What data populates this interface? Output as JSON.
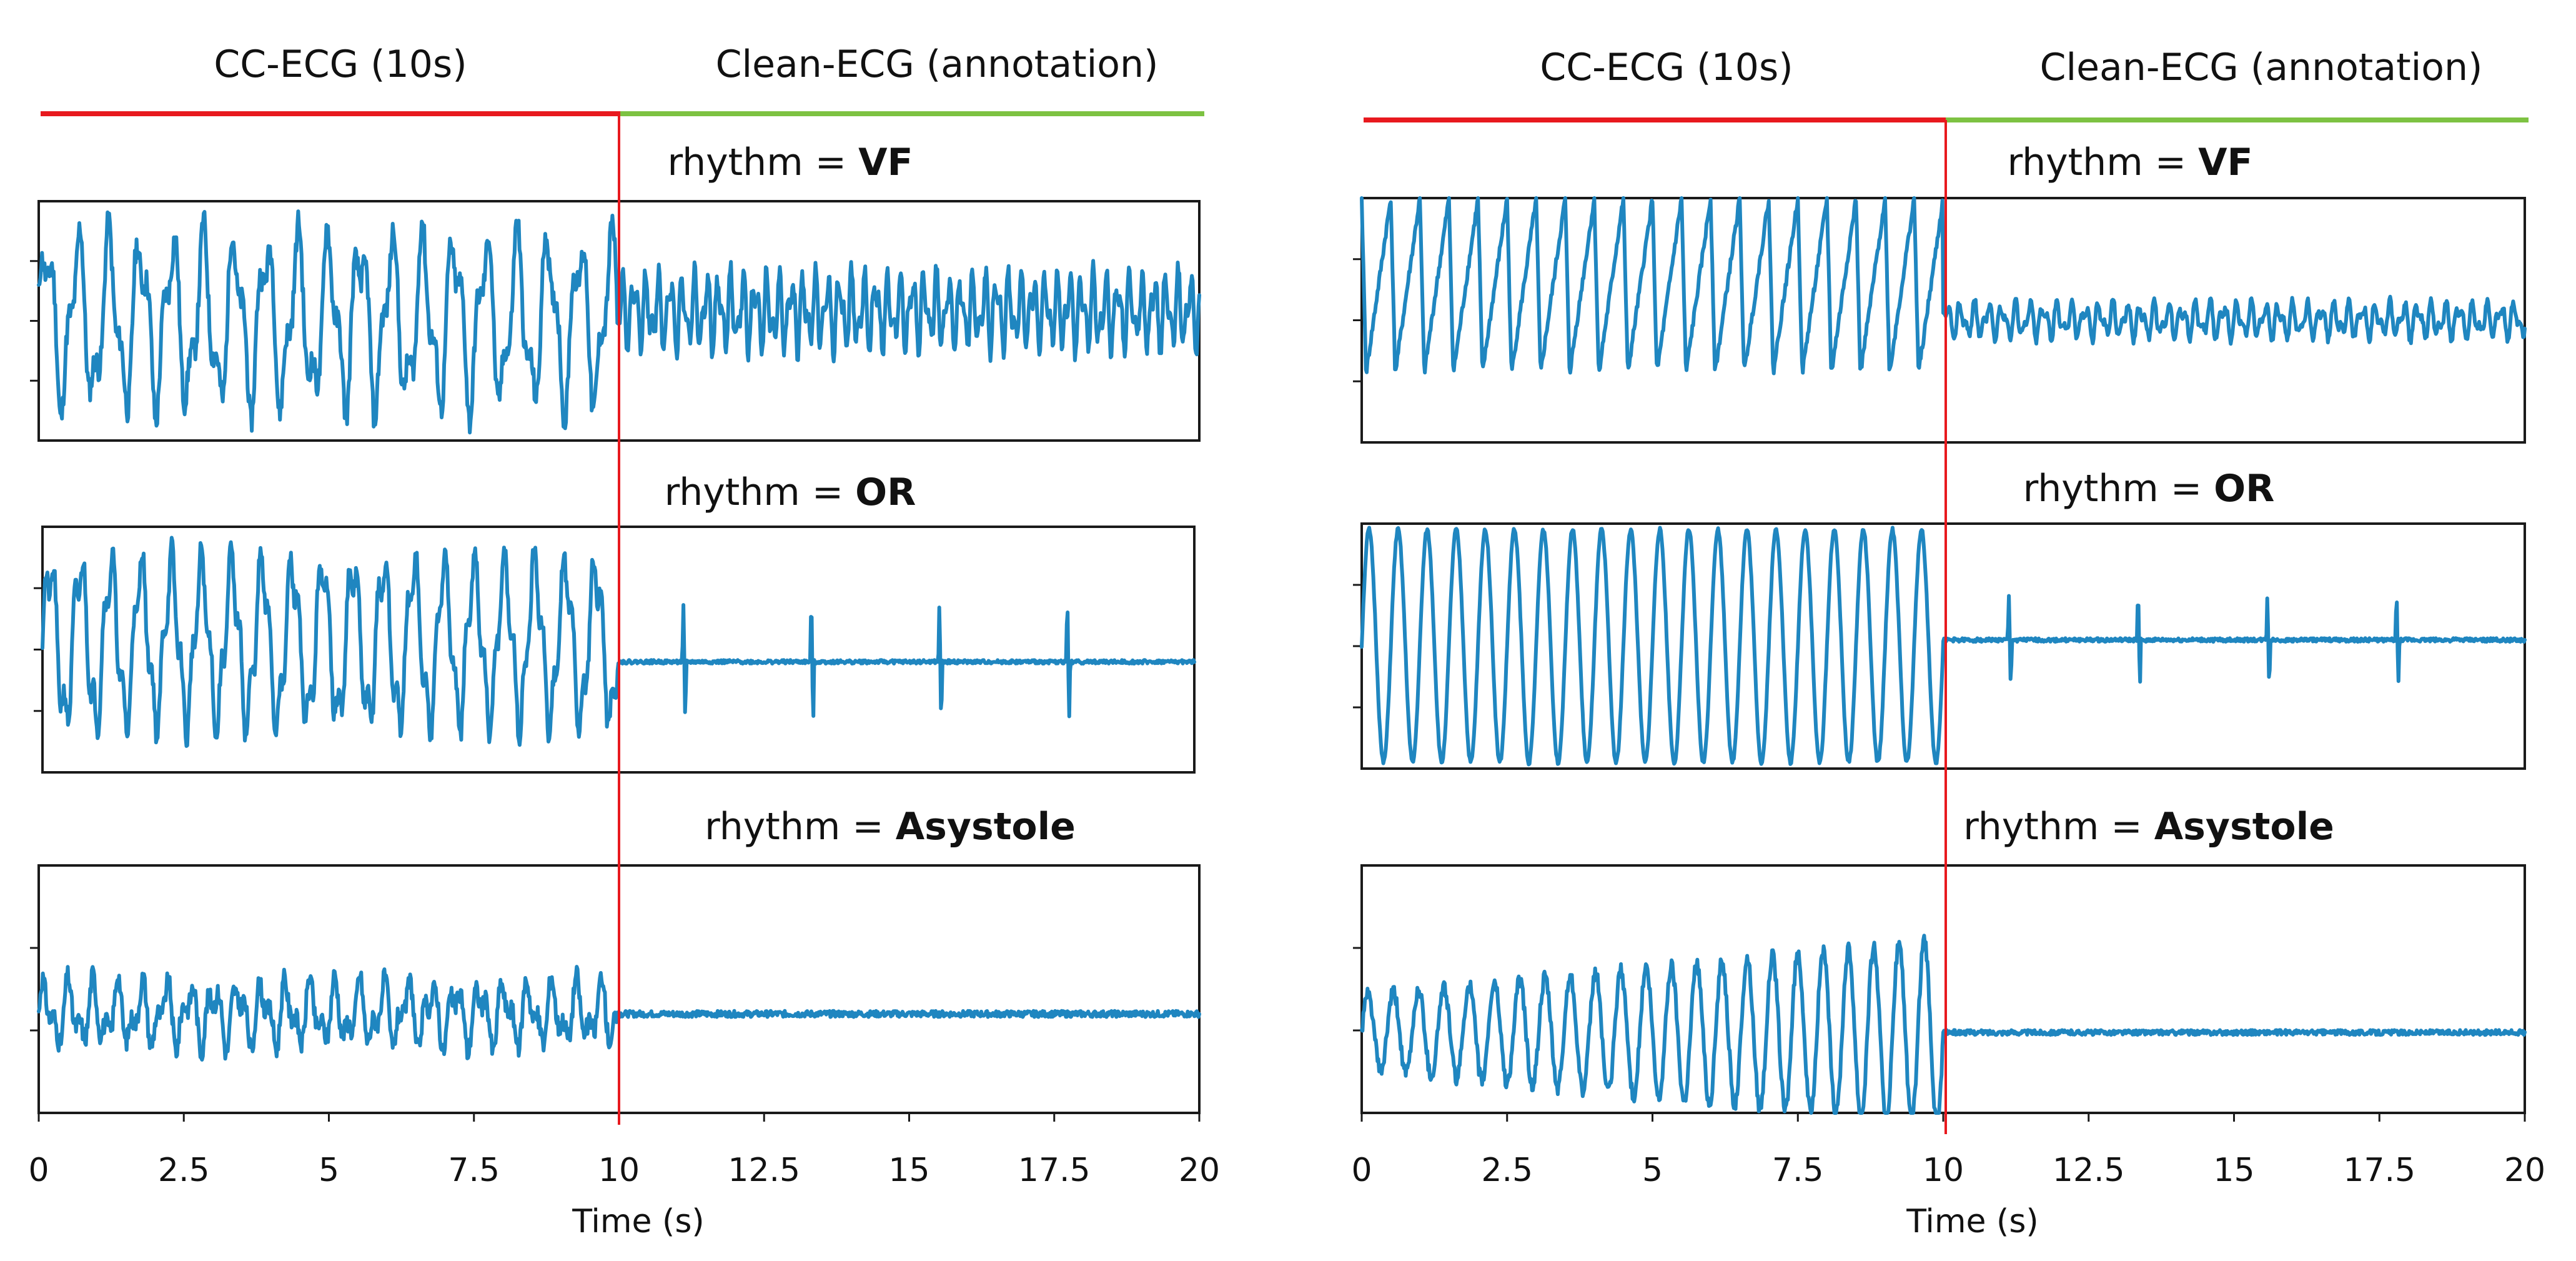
{
  "colors": {
    "trace": "#1F86C0",
    "cc_segment": "#E8191E",
    "clean_segment": "#7DC242",
    "divider": "#E8191E",
    "frame": "#1a1a1a",
    "text": "#111111"
  },
  "chart_data": [
    {
      "type": "line",
      "panel": "left",
      "header_left": "CC-ECG (10s)",
      "header_right": "Clean-ECG (annotation)",
      "xlabel": "Time (s)",
      "xlim": [
        0,
        20
      ],
      "xticks": [
        "0",
        "2.5",
        "5",
        "7.5",
        "10",
        "12.5",
        "15",
        "17.5",
        "20"
      ],
      "divider_x": 10,
      "subplots": [
        {
          "rhythm_prefix": "rhythm = ",
          "rhythm": "VF",
          "yticks": 3,
          "ylim": [
            -1,
            1
          ],
          "series": {
            "before": {
              "shape": "vf",
              "amp": 0.85,
              "rate": 1.85,
              "base": 0.0,
              "seed": 11
            },
            "after": {
              "shape": "vf_fine",
              "amp": 0.38,
              "rate": 4.8,
              "base": 0.08,
              "seed": 12
            }
          }
        },
        {
          "rhythm_prefix": "rhythm = ",
          "rhythm": "OR",
          "yticks": 3,
          "ylim": [
            -1,
            1
          ],
          "series": {
            "before": {
              "shape": "cc",
              "amp": 0.8,
              "rate": 1.9,
              "base": 0.05,
              "seed": 21
            },
            "after": {
              "shape": "or",
              "amp": 0.45,
              "rate": 0.45,
              "base": -0.1,
              "seed": 22
            }
          }
        },
        {
          "rhythm_prefix": "rhythm = ",
          "rhythm": "Asystole",
          "yticks": 2,
          "ylim": [
            -1,
            1
          ],
          "series": {
            "before": {
              "shape": "asys_cc",
              "amp": 0.32,
              "rate": 2.4,
              "base": -0.2,
              "seed": 31
            },
            "after": {
              "shape": "flat",
              "amp": 0.05,
              "rate": 1.0,
              "base": -0.2,
              "seed": 32
            }
          }
        }
      ]
    },
    {
      "type": "line",
      "panel": "right",
      "header_left": "CC-ECG (10s)",
      "header_right": "Clean-ECG (annotation)",
      "xlabel": "Time (s)",
      "xlim": [
        0,
        20
      ],
      "xticks": [
        "0",
        "2.5",
        "5",
        "7.5",
        "10",
        "12.5",
        "15",
        "17.5",
        "20"
      ],
      "divider_x": 10,
      "subplots": [
        {
          "rhythm_prefix": "rhythm = ",
          "rhythm": "VF",
          "yticks": 3,
          "ylim": [
            -1,
            1
          ],
          "series": {
            "before": {
              "shape": "saw",
              "amp": 0.9,
              "rate": 2.0,
              "base": 0.1,
              "seed": 41
            },
            "after": {
              "shape": "vf_fine",
              "amp": 0.18,
              "rate": 4.2,
              "base": 0.0,
              "seed": 42
            }
          }
        },
        {
          "rhythm_prefix": "rhythm = ",
          "rhythm": "OR",
          "yticks": 3,
          "ylim": [
            -1,
            1
          ],
          "series": {
            "before": {
              "shape": "sine",
              "amp": 0.95,
              "rate": 2.0,
              "base": 0.0,
              "seed": 51
            },
            "after": {
              "shape": "or",
              "amp": 0.35,
              "rate": 0.45,
              "base": 0.05,
              "seed": 52
            }
          }
        },
        {
          "rhythm_prefix": "rhythm = ",
          "rhythm": "Asystole",
          "yticks": 2,
          "ylim": [
            -1,
            1
          ],
          "series": {
            "before": {
              "shape": "grow",
              "amp": 0.75,
              "rate": 2.3,
              "base": -0.35,
              "seed": 61
            },
            "after": {
              "shape": "flat",
              "amp": 0.04,
              "rate": 1.0,
              "base": -0.35,
              "seed": 62
            }
          }
        }
      ]
    }
  ]
}
